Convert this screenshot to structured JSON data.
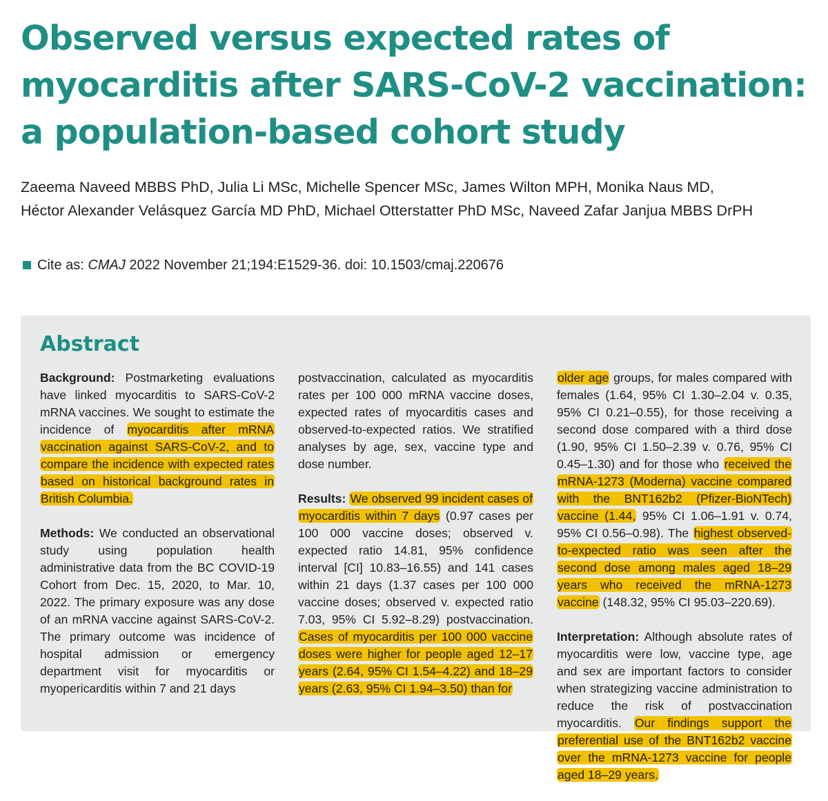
{
  "title": "Observed versus expected rates of myocarditis after SARS-CoV-2 vaccination: a population-based cohort study",
  "authors_line1": "Zaeema Naveed MBBS PhD, Julia Li MSc, Michelle Spencer MSc, James Wilton MPH, Monika Naus MD,",
  "authors_line2": "Héctor Alexander Velásquez García MD PhD, Michael Otterstatter PhD MSc, Naveed Zafar Janjua MBBS DrPH",
  "cite": {
    "label": "Cite as:",
    "journal": "CMAJ",
    "details": "2022 November 21;194:E1529-36. doi: 10.1503/cmaj.220676"
  },
  "abstract": {
    "heading": "Abstract",
    "background": {
      "label": "Background:",
      "t1": " Postmarketing evaluations have linked myocarditis to SARS-CoV-2 mRNA vaccines. We sought to estimate the incidence of ",
      "h1": "myocarditis after mRNA vaccination against SARS-CoV-2, and to compare the incidence with expected rates based on historical background rates in British Columbia."
    },
    "methods": {
      "label": "Methods:",
      "t1": " We conducted an observational study using population health administrative data from the BC COVID-19 Cohort from Dec. 15, 2020, to Mar. 10, 2022. The primary exposure was any dose of an mRNA vaccine against SARS-CoV-2. The primary outcome was incidence of hospital admission or emergency department visit for myocarditis or myopericarditis within 7 and 21 days postvaccination, calculated as myocarditis rates per 100 000 mRNA vaccine doses, expected rates of myocarditis cases and observed-to-expected ratios. We stratified analyses by age, sex, vaccine type and dose number."
    },
    "results": {
      "label": "Results:",
      "h1": "We observed 99 incident cases of myocarditis within 7 days",
      "t1": " (0.97 cases per 100 000 vaccine doses; observed v. expected ratio 14.81, 95% confidence interval [CI] 10.83–16.55) and 141 cases within 21 days (1.37 cases per 100 000 vaccine doses; observed v. expected ratio 7.03, 95% CI 5.92–8.29) postvaccination. ",
      "h2": "Cases of myocarditis per 100 000 vaccine doses were higher for people aged 12–17 years (2.64, 95% CI 1.54–4.22) and 18–29 years (2.63, 95% CI 1.94–3.50) than for older age",
      "t2": " groups, for males compared with females (1.64, 95% CI 1.30–2.04 v. 0.35, 95% CI 0.21–0.55), for those receiving a second dose compared with a third dose (1.90, 95% CI 1.50–2.39 v. 0.76, 95% CI 0.45–1.30) and for those who ",
      "h3": "received the mRNA-1273 (Moderna) vaccine compared with the BNT162b2 (Pfizer-BioNTech) vaccine (1.44,",
      "t3": " 95% CI 1.06–1.91 v. 0.74, 95% CI 0.56–0.98). The ",
      "h4": "highest observed-to-expected ratio was seen after the second dose among males aged 18–29 years who received the mRNA-1273 vaccine",
      "t4": " (148.32, 95% CI 95.03–220.69)."
    },
    "interpretation": {
      "label": "Interpretation:",
      "t1": " Although absolute rates of myocarditis were low, vaccine type, age and sex are important factors to consider when strategizing vaccine administration to reduce the risk of postvaccination myocarditis. ",
      "h1": "Our findings support the preferential use of the BNT162b2 vaccine over the mRNA-1273 vaccine for people aged 18–29 years."
    }
  }
}
